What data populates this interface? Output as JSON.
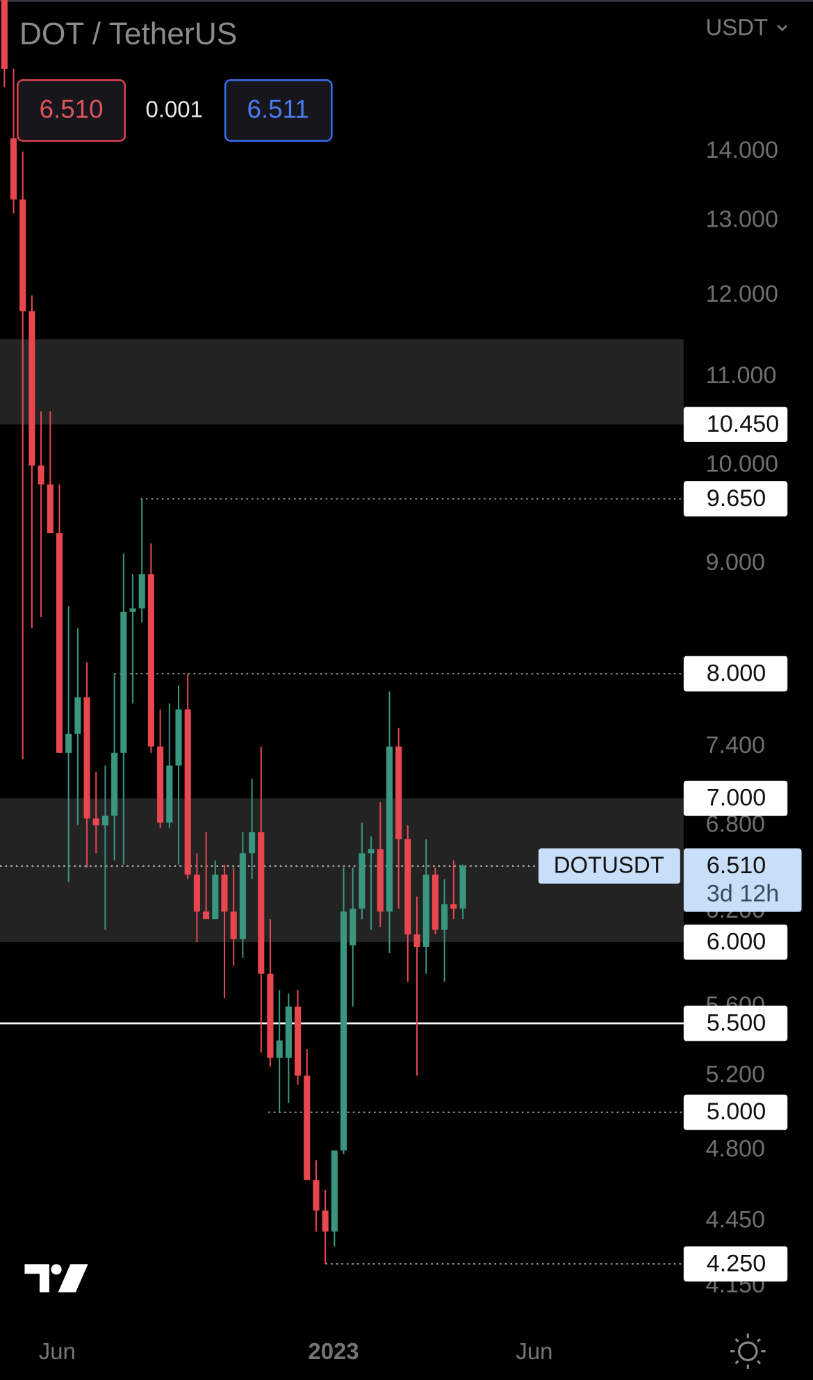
{
  "header": {
    "title": "DOT / TetherUS",
    "bid": "6.510",
    "spread": "0.001",
    "ask": "6.511",
    "currency": "USDT"
  },
  "chart_data": {
    "type": "candlestick",
    "log_scale": true,
    "up_color": "#3b9680",
    "down_color": "#e84750",
    "open": [
      16.8,
      14.2,
      13.3,
      11.8,
      10.0,
      9.8,
      9.3,
      7.35,
      7.5,
      7.8,
      6.85,
      6.8,
      6.87,
      7.35,
      8.55,
      8.58,
      8.9,
      7.4,
      6.82,
      7.25,
      7.7,
      6.45,
      6.2,
      6.15,
      6.45,
      6.2,
      6.02,
      6.6,
      6.75,
      5.8,
      5.3,
      5.3,
      5.6,
      5.2,
      4.65,
      4.5,
      4.4,
      4.8,
      5.98,
      6.22,
      6.6,
      6.63,
      6.2,
      7.4,
      6.7,
      6.05,
      5.97,
      6.45,
      6.08,
      6.25,
      6.22
    ],
    "high": [
      17.2,
      15.3,
      14.0,
      12.0,
      10.6,
      10.6,
      9.8,
      8.6,
      8.4,
      8.1,
      7.2,
      7.25,
      8.0,
      9.1,
      8.9,
      9.65,
      9.2,
      7.7,
      7.75,
      7.9,
      8.0,
      6.6,
      6.75,
      6.55,
      6.52,
      6.5,
      6.75,
      7.15,
      7.4,
      6.15,
      5.7,
      5.68,
      5.7,
      5.35,
      4.75,
      4.6,
      4.8,
      6.5,
      6.5,
      6.82,
      6.72,
      6.97,
      7.85,
      7.55,
      6.8,
      6.3,
      6.7,
      6.5,
      6.42,
      6.55,
      6.52
    ],
    "low": [
      15.0,
      13.1,
      7.3,
      8.4,
      8.5,
      9.3,
      7.35,
      6.4,
      6.8,
      6.5,
      6.6,
      6.08,
      6.55,
      6.52,
      7.75,
      8.45,
      7.35,
      6.78,
      6.78,
      6.52,
      6.42,
      6.0,
      6.16,
      6.15,
      5.65,
      5.85,
      5.9,
      6.42,
      5.33,
      5.25,
      5.0,
      5.05,
      5.15,
      4.65,
      4.4,
      4.25,
      4.33,
      4.78,
      5.6,
      6.15,
      6.08,
      6.1,
      5.93,
      6.22,
      5.75,
      5.2,
      5.8,
      6.05,
      5.75,
      6.15,
      6.15
    ],
    "close": [
      15.3,
      13.3,
      11.8,
      10.0,
      9.8,
      9.3,
      7.35,
      7.5,
      7.8,
      6.85,
      6.8,
      6.87,
      7.35,
      8.55,
      8.58,
      8.9,
      7.4,
      6.82,
      7.25,
      7.7,
      6.45,
      6.2,
      6.15,
      6.45,
      6.2,
      6.02,
      6.6,
      6.75,
      5.8,
      5.3,
      5.4,
      5.6,
      5.2,
      4.65,
      4.5,
      4.4,
      4.8,
      6.2,
      6.22,
      6.6,
      6.63,
      6.2,
      7.4,
      6.7,
      6.05,
      5.97,
      6.45,
      6.08,
      6.25,
      6.22,
      6.51
    ],
    "x_labels": [
      "Jun",
      "2023",
      "Jun"
    ],
    "ylim": [
      4.0,
      16.47
    ],
    "yticks": [
      {
        "value": 4.15,
        "label": "4.150"
      },
      {
        "value": 4.45,
        "label": "4.450"
      },
      {
        "value": 4.8,
        "label": "4.800"
      },
      {
        "value": 5.2,
        "label": "5.200"
      },
      {
        "value": 5.6,
        "label": "5.600"
      },
      {
        "value": 6.2,
        "label": "6.200"
      },
      {
        "value": 6.8,
        "label": "6.800"
      },
      {
        "value": 7.4,
        "label": "7.400"
      },
      {
        "value": 9,
        "label": "9.000"
      },
      {
        "value": 10,
        "label": "10.000"
      },
      {
        "value": 11,
        "label": "11.000"
      },
      {
        "value": 12,
        "label": "12.000"
      },
      {
        "value": 13,
        "label": "13.000"
      },
      {
        "value": 14,
        "label": "14.000"
      }
    ],
    "zones": [
      {
        "from": 10.45,
        "to": 11.45,
        "color": "#232323"
      },
      {
        "from": 6.0,
        "to": 7.0,
        "color": "#232323"
      }
    ],
    "levels": [
      {
        "value": 10.45,
        "label": "10.450",
        "style": "none"
      },
      {
        "value": 9.65,
        "label": "9.650",
        "style": "dotted"
      },
      {
        "value": 8.0,
        "label": "8.000",
        "style": "dotted"
      },
      {
        "value": 7.0,
        "label": "7.000",
        "style": "none"
      },
      {
        "value": 6.0,
        "label": "6.000",
        "style": "none"
      },
      {
        "value": 5.5,
        "label": "5.500",
        "style": "solid"
      },
      {
        "value": 5.0,
        "label": "5.000",
        "style": "dotted"
      },
      {
        "value": 4.25,
        "label": "4.250",
        "style": "dotted"
      }
    ],
    "current": {
      "symbol": "DOTUSDT",
      "value": 6.51,
      "label": "6.510",
      "countdown": "3d 12h"
    }
  }
}
